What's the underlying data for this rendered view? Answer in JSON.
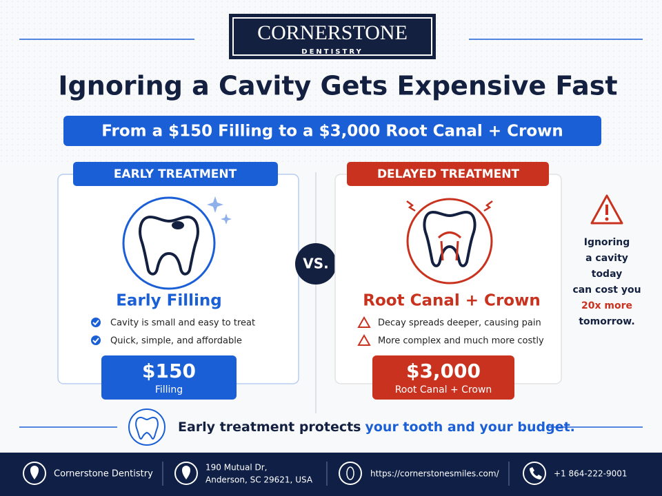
{
  "header": {
    "logo": {
      "name": "CORNERSTONE",
      "sub": "DENTISTRY"
    },
    "title": "Ignoring a Cavity Gets Expensive Fast",
    "subtitle": "From a $150 Filling to a $3,000 Root Canal + Crown"
  },
  "early": {
    "label": "EARLY TREATMENT",
    "heading": "Early Filling",
    "points": [
      "Cavity is small and easy to treat",
      "Quick, simple, and affordable"
    ],
    "price": "$150",
    "price_label": "Filling"
  },
  "versus": "VS.",
  "delayed": {
    "label": "DELAYED TREATMENT",
    "heading": "Root Canal + Crown",
    "points": [
      "Decay spreads deeper, causing pain",
      "More complex and much more costly"
    ],
    "price": "$3,000",
    "price_label": "Root Canal + Crown"
  },
  "note": {
    "lines": [
      "Ignoring",
      "a cavity",
      "today",
      "can cost you"
    ],
    "highlight": "20x more",
    "end": "tomorrow."
  },
  "tagline": {
    "text": "Early treatment protects",
    "highlight": "your tooth and your budget."
  },
  "footer": {
    "name": "Cornerstone Dentistry",
    "address": [
      "190 Mutual Dr,",
      "Anderson, SC 29621, USA"
    ],
    "website": "https://cornerstonesmiles.com/",
    "phone": "+1 864-222-9001"
  }
}
